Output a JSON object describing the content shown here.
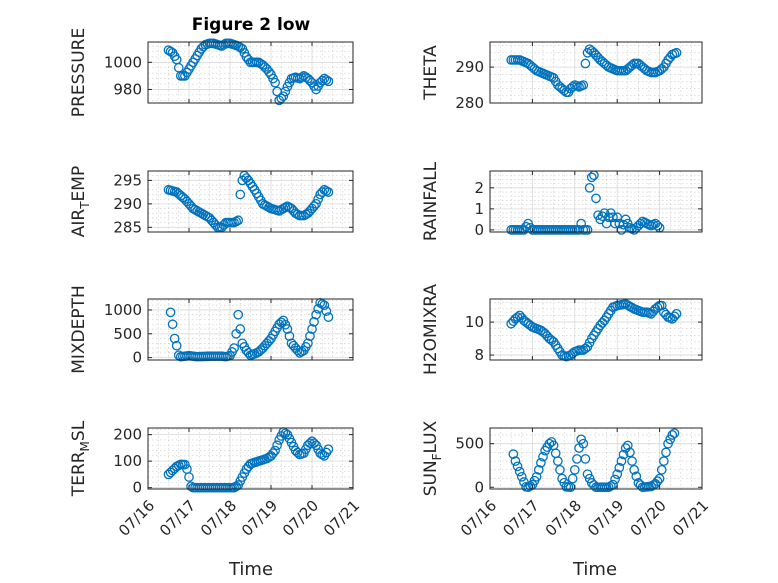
{
  "figure": {
    "title": "Figure 2 low",
    "x_axis_label": "Time",
    "marker_color": "#0072bd"
  },
  "chart_data": [
    {
      "type": "scatter",
      "title": "Figure 2 low",
      "ylabel": "PRESSURE",
      "ylabel_parts": [
        {
          "t": "PRESSURE",
          "sub": false
        }
      ],
      "xlabel": "",
      "xlim": [
        "2017-07-16",
        "2017-07-21"
      ],
      "ylim": [
        970,
        1015
      ],
      "yticks": [
        980,
        1000
      ],
      "xticks": [],
      "grid": true,
      "knots": [
        [
          16.5,
          1009
        ],
        [
          16.6,
          1007
        ],
        [
          16.7,
          1002
        ],
        [
          16.8,
          990
        ],
        [
          16.9,
          990
        ],
        [
          17.0,
          995
        ],
        [
          17.1,
          1000
        ],
        [
          17.2,
          1005
        ],
        [
          17.3,
          1010
        ],
        [
          17.4,
          1013
        ],
        [
          17.5,
          1014
        ],
        [
          17.6,
          1014
        ],
        [
          17.7,
          1013
        ],
        [
          17.8,
          1012
        ],
        [
          17.9,
          1014
        ],
        [
          18.0,
          1014
        ],
        [
          18.1,
          1013
        ],
        [
          18.2,
          1012
        ],
        [
          18.3,
          1010
        ],
        [
          18.4,
          1004
        ],
        [
          18.5,
          1000
        ],
        [
          18.6,
          1000
        ],
        [
          18.7,
          1000
        ],
        [
          18.8,
          998
        ],
        [
          18.9,
          995
        ],
        [
          19.0,
          991
        ],
        [
          19.1,
          985
        ],
        [
          19.2,
          972
        ],
        [
          19.3,
          975
        ],
        [
          19.4,
          982
        ],
        [
          19.5,
          988
        ],
        [
          19.6,
          989
        ],
        [
          19.7,
          988
        ],
        [
          19.8,
          990
        ],
        [
          19.9,
          988
        ],
        [
          20.0,
          985
        ],
        [
          20.1,
          980
        ],
        [
          20.2,
          985
        ],
        [
          20.3,
          988
        ],
        [
          20.4,
          986
        ]
      ]
    },
    {
      "type": "scatter",
      "title": "",
      "ylabel": "THETA",
      "ylabel_parts": [
        {
          "t": "THETA",
          "sub": false
        }
      ],
      "xlabel": "",
      "xlim": [
        "2017-07-16",
        "2017-07-21"
      ],
      "ylim": [
        280,
        297
      ],
      "yticks": [
        280,
        290
      ],
      "xticks": [],
      "grid": true,
      "knots": [
        [
          16.5,
          292
        ],
        [
          16.7,
          292
        ],
        [
          16.9,
          291
        ],
        [
          17.1,
          289
        ],
        [
          17.3,
          288
        ],
        [
          17.5,
          287
        ],
        [
          17.6,
          285
        ],
        [
          17.7,
          284
        ],
        [
          17.8,
          283
        ],
        [
          17.85,
          283
        ],
        [
          17.9,
          284
        ],
        [
          18.0,
          285
        ],
        [
          18.1,
          284.5
        ],
        [
          18.2,
          285
        ],
        [
          18.22,
          288
        ],
        [
          18.25,
          291
        ],
        [
          18.3,
          294
        ],
        [
          18.35,
          295
        ],
        [
          18.45,
          294
        ],
        [
          18.6,
          292
        ],
        [
          18.8,
          290
        ],
        [
          19.0,
          289
        ],
        [
          19.2,
          289
        ],
        [
          19.3,
          290
        ],
        [
          19.4,
          291
        ],
        [
          19.5,
          291
        ],
        [
          19.6,
          290
        ],
        [
          19.7,
          289
        ],
        [
          19.8,
          288.5
        ],
        [
          19.9,
          288.5
        ],
        [
          20.0,
          289
        ],
        [
          20.1,
          290
        ],
        [
          20.2,
          292
        ],
        [
          20.3,
          293.5
        ],
        [
          20.4,
          294
        ]
      ]
    },
    {
      "type": "scatter",
      "title": "",
      "ylabel": "AIR_TEMP",
      "ylabel_parts": [
        {
          "t": "AIR",
          "sub": false
        },
        {
          "t": "T",
          "sub": true
        },
        {
          "t": "EMP",
          "sub": false
        }
      ],
      "xlabel": "",
      "xlim": [
        "2017-07-16",
        "2017-07-21"
      ],
      "ylim": [
        284,
        297
      ],
      "yticks": [
        285,
        290,
        295
      ],
      "xticks": [],
      "grid": true,
      "knots": [
        [
          16.5,
          293
        ],
        [
          16.7,
          292.5
        ],
        [
          16.9,
          291
        ],
        [
          17.1,
          289
        ],
        [
          17.3,
          288
        ],
        [
          17.5,
          287
        ],
        [
          17.6,
          286
        ],
        [
          17.7,
          285
        ],
        [
          17.8,
          285
        ],
        [
          17.9,
          286
        ],
        [
          18.0,
          286
        ],
        [
          18.1,
          286
        ],
        [
          18.2,
          286.5
        ],
        [
          18.22,
          288
        ],
        [
          18.25,
          292
        ],
        [
          18.3,
          295
        ],
        [
          18.35,
          296
        ],
        [
          18.45,
          295
        ],
        [
          18.6,
          293
        ],
        [
          18.8,
          290
        ],
        [
          19.0,
          289
        ],
        [
          19.2,
          288.5
        ],
        [
          19.3,
          289
        ],
        [
          19.4,
          289.5
        ],
        [
          19.5,
          289
        ],
        [
          19.6,
          288
        ],
        [
          19.7,
          287.5
        ],
        [
          19.8,
          287.5
        ],
        [
          19.9,
          288
        ],
        [
          20.0,
          289
        ],
        [
          20.1,
          290
        ],
        [
          20.2,
          292
        ],
        [
          20.3,
          293
        ],
        [
          20.4,
          292.5
        ]
      ]
    },
    {
      "type": "scatter",
      "title": "",
      "ylabel": "RAINFALL",
      "ylabel_parts": [
        {
          "t": "RAINFALL",
          "sub": false
        }
      ],
      "xlabel": "",
      "xlim": [
        "2017-07-16",
        "2017-07-21"
      ],
      "ylim": [
        -0.1,
        2.8
      ],
      "yticks": [
        0,
        1,
        2
      ],
      "xticks": [],
      "grid": true,
      "knots": [
        [
          16.5,
          0
        ],
        [
          16.8,
          0
        ],
        [
          16.85,
          0.15
        ],
        [
          16.9,
          0.3
        ],
        [
          16.95,
          0.1
        ],
        [
          17.0,
          0
        ],
        [
          17.2,
          0
        ],
        [
          17.5,
          0
        ],
        [
          17.8,
          0
        ],
        [
          18.0,
          0
        ],
        [
          18.1,
          0
        ],
        [
          18.15,
          0.3
        ],
        [
          18.2,
          0
        ],
        [
          18.3,
          0
        ],
        [
          18.35,
          2
        ],
        [
          18.4,
          2.5
        ],
        [
          18.45,
          2.6
        ],
        [
          18.5,
          1.5
        ],
        [
          18.55,
          0.7
        ],
        [
          18.6,
          0.5
        ],
        [
          18.7,
          0.8
        ],
        [
          18.75,
          0.3
        ],
        [
          18.8,
          0.6
        ],
        [
          18.85,
          0.8
        ],
        [
          18.9,
          0.6
        ],
        [
          18.95,
          0.3
        ],
        [
          19.0,
          0.6
        ],
        [
          19.05,
          0.3
        ],
        [
          19.1,
          0
        ],
        [
          19.2,
          0.5
        ],
        [
          19.3,
          0.1
        ],
        [
          19.4,
          0
        ],
        [
          19.5,
          0.2
        ],
        [
          19.6,
          0.4
        ],
        [
          19.7,
          0.3
        ],
        [
          19.8,
          0.2
        ],
        [
          19.9,
          0.3
        ],
        [
          20.0,
          0.1
        ]
      ]
    },
    {
      "type": "scatter",
      "title": "",
      "ylabel": "MIXDEPTH",
      "ylabel_parts": [
        {
          "t": "MIXDEPTH",
          "sub": false
        }
      ],
      "xlabel": "",
      "xlim": [
        "2017-07-16",
        "2017-07-21"
      ],
      "ylim": [
        -50,
        1230
      ],
      "yticks": [
        0,
        500,
        1000
      ],
      "xticks": [],
      "grid": true,
      "knots": [
        [
          16.55,
          950
        ],
        [
          16.6,
          700
        ],
        [
          16.65,
          400
        ],
        [
          16.7,
          250
        ],
        [
          16.75,
          50
        ],
        [
          16.8,
          20
        ],
        [
          17.0,
          40
        ],
        [
          17.2,
          20
        ],
        [
          17.5,
          30
        ],
        [
          17.8,
          30
        ],
        [
          17.9,
          20
        ],
        [
          18.0,
          40
        ],
        [
          18.1,
          200
        ],
        [
          18.15,
          500
        ],
        [
          18.2,
          900
        ],
        [
          18.25,
          600
        ],
        [
          18.3,
          300
        ],
        [
          18.4,
          150
        ],
        [
          18.5,
          50
        ],
        [
          18.6,
          80
        ],
        [
          18.7,
          120
        ],
        [
          18.8,
          200
        ],
        [
          18.9,
          300
        ],
        [
          19.0,
          400
        ],
        [
          19.1,
          550
        ],
        [
          19.2,
          700
        ],
        [
          19.3,
          780
        ],
        [
          19.4,
          600
        ],
        [
          19.5,
          300
        ],
        [
          19.6,
          200
        ],
        [
          19.7,
          100
        ],
        [
          19.8,
          150
        ],
        [
          19.9,
          300
        ],
        [
          20.0,
          600
        ],
        [
          20.1,
          900
        ],
        [
          20.2,
          1150
        ],
        [
          20.3,
          1100
        ],
        [
          20.4,
          850
        ]
      ]
    },
    {
      "type": "scatter",
      "title": "",
      "ylabel": "H2OMIXRA",
      "ylabel_parts": [
        {
          "t": "H2OMIXRA",
          "sub": false
        }
      ],
      "xlabel": "",
      "xlim": [
        "2017-07-16",
        "2017-07-21"
      ],
      "ylim": [
        7.7,
        11.4
      ],
      "yticks": [
        8,
        10
      ],
      "xticks": [],
      "grid": true,
      "knots": [
        [
          16.5,
          9.9
        ],
        [
          16.6,
          10.2
        ],
        [
          16.7,
          10.4
        ],
        [
          16.8,
          10.1
        ],
        [
          16.9,
          9.9
        ],
        [
          17.0,
          9.7
        ],
        [
          17.1,
          9.6
        ],
        [
          17.2,
          9.5
        ],
        [
          17.3,
          9.3
        ],
        [
          17.4,
          9.0
        ],
        [
          17.5,
          8.8
        ],
        [
          17.6,
          8.4
        ],
        [
          17.7,
          8.0
        ],
        [
          17.8,
          7.9
        ],
        [
          17.9,
          8.0
        ],
        [
          18.0,
          8.2
        ],
        [
          18.1,
          8.3
        ],
        [
          18.2,
          8.3
        ],
        [
          18.3,
          8.5
        ],
        [
          18.4,
          9.0
        ],
        [
          18.5,
          9.4
        ],
        [
          18.6,
          9.8
        ],
        [
          18.7,
          10.1
        ],
        [
          18.8,
          10.5
        ],
        [
          18.9,
          10.9
        ],
        [
          19.0,
          11.0
        ],
        [
          19.2,
          11.1
        ],
        [
          19.4,
          10.8
        ],
        [
          19.5,
          10.7
        ],
        [
          19.6,
          10.6
        ],
        [
          19.7,
          10.6
        ],
        [
          19.8,
          10.5
        ],
        [
          19.9,
          10.8
        ],
        [
          20.0,
          11.0
        ],
        [
          20.05,
          11.0
        ],
        [
          20.1,
          10.6
        ],
        [
          20.2,
          10.3
        ],
        [
          20.3,
          10.2
        ],
        [
          20.4,
          10.5
        ]
      ]
    },
    {
      "type": "scatter",
      "title": "",
      "ylabel": "TERR_MSL",
      "ylabel_parts": [
        {
          "t": "TERR",
          "sub": false
        },
        {
          "t": "M",
          "sub": true
        },
        {
          "t": "SL",
          "sub": false
        }
      ],
      "xlabel": "Time",
      "xlim": [
        "2017-07-16",
        "2017-07-21"
      ],
      "ylim": [
        -5,
        225
      ],
      "yticks": [
        0,
        100,
        200
      ],
      "xticks": [
        "07/16",
        "07/17",
        "07/18",
        "07/19",
        "07/20",
        "07/21"
      ],
      "grid": true,
      "knots": [
        [
          16.5,
          50
        ],
        [
          16.6,
          65
        ],
        [
          16.7,
          80
        ],
        [
          16.8,
          88
        ],
        [
          16.9,
          87
        ],
        [
          16.95,
          70
        ],
        [
          17.0,
          40
        ],
        [
          17.05,
          5
        ],
        [
          17.1,
          0
        ],
        [
          17.5,
          0
        ],
        [
          18.0,
          0
        ],
        [
          18.1,
          0
        ],
        [
          18.2,
          10
        ],
        [
          18.3,
          40
        ],
        [
          18.4,
          70
        ],
        [
          18.5,
          90
        ],
        [
          18.6,
          95
        ],
        [
          18.7,
          100
        ],
        [
          18.8,
          105
        ],
        [
          18.9,
          110
        ],
        [
          19.0,
          120
        ],
        [
          19.1,
          140
        ],
        [
          19.2,
          180
        ],
        [
          19.3,
          210
        ],
        [
          19.4,
          200
        ],
        [
          19.5,
          170
        ],
        [
          19.6,
          140
        ],
        [
          19.7,
          125
        ],
        [
          19.8,
          130
        ],
        [
          19.9,
          160
        ],
        [
          20.0,
          175
        ],
        [
          20.1,
          160
        ],
        [
          20.2,
          130
        ],
        [
          20.3,
          120
        ],
        [
          20.4,
          145
        ]
      ]
    },
    {
      "type": "scatter",
      "title": "",
      "ylabel": "SUN_FLUX",
      "ylabel_parts": [
        {
          "t": "SUN",
          "sub": false
        },
        {
          "t": "F",
          "sub": true
        },
        {
          "t": "LUX",
          "sub": false
        }
      ],
      "xlabel": "Time",
      "xlim": [
        "2017-07-16",
        "2017-07-21"
      ],
      "ylim": [
        -20,
        680
      ],
      "yticks": [
        0,
        500
      ],
      "xticks": [
        "07/16",
        "07/17",
        "07/18",
        "07/19",
        "07/20",
        "07/21"
      ],
      "grid": true,
      "knots": [
        [
          16.55,
          380
        ],
        [
          16.6,
          300
        ],
        [
          16.7,
          180
        ],
        [
          16.8,
          60
        ],
        [
          16.85,
          5
        ],
        [
          16.9,
          0
        ],
        [
          17.0,
          30
        ],
        [
          17.1,
          120
        ],
        [
          17.2,
          280
        ],
        [
          17.3,
          420
        ],
        [
          17.4,
          500
        ],
        [
          17.45,
          520
        ],
        [
          17.5,
          480
        ],
        [
          17.6,
          300
        ],
        [
          17.7,
          100
        ],
        [
          17.8,
          5
        ],
        [
          17.9,
          0
        ],
        [
          18.0,
          200
        ],
        [
          18.1,
          450
        ],
        [
          18.15,
          550
        ],
        [
          18.2,
          500
        ],
        [
          18.3,
          150
        ],
        [
          18.4,
          50
        ],
        [
          18.5,
          0
        ],
        [
          18.8,
          0
        ],
        [
          18.9,
          30
        ],
        [
          19.0,
          150
        ],
        [
          19.1,
          300
        ],
        [
          19.2,
          450
        ],
        [
          19.25,
          480
        ],
        [
          19.3,
          400
        ],
        [
          19.4,
          200
        ],
        [
          19.5,
          50
        ],
        [
          19.6,
          0
        ],
        [
          19.8,
          10
        ],
        [
          19.9,
          40
        ],
        [
          20.0,
          100
        ],
        [
          20.1,
          300
        ],
        [
          20.2,
          500
        ],
        [
          20.3,
          600
        ],
        [
          20.35,
          620
        ]
      ]
    }
  ]
}
